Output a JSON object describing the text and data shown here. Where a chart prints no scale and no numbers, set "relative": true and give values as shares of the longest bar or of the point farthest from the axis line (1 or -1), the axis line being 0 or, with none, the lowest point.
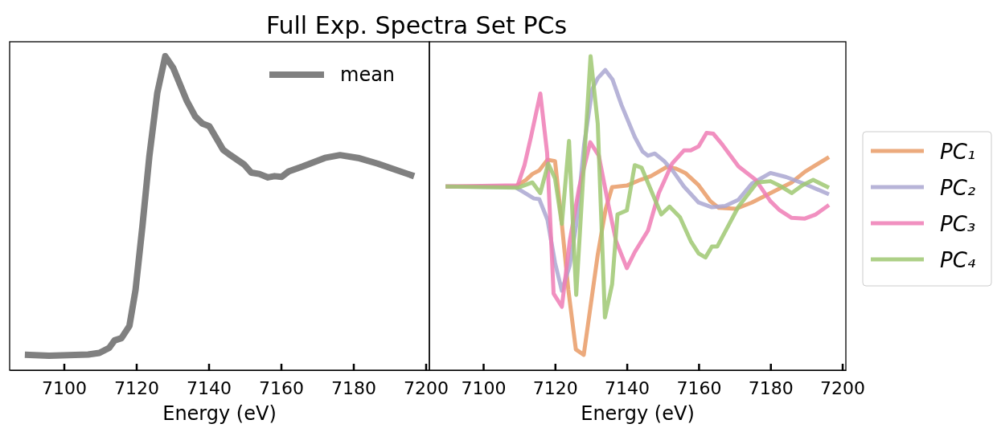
{
  "chart_data": [
    {
      "type": "line",
      "title": "Full Exp. Spectra Set PCs",
      "xlabel": "Energy (eV)",
      "relative": true,
      "tick_labels": "x",
      "legend": "top right",
      "xlim": [
        7085,
        7201
      ],
      "xticks": [
        7100,
        7120,
        7140,
        7160,
        7180,
        7200
      ],
      "series": [
        {
          "name": "mean",
          "color": "#808080",
          "x": [
            7089.2,
            7095.9,
            7106.7,
            7109.8,
            7112.5,
            7114,
            7115.9,
            7118.1,
            7119.8,
            7121.7,
            7123.6,
            7125.8,
            7128,
            7130.2,
            7134,
            7136.3,
            7138.2,
            7140.2,
            7144,
            7146,
            7149.8,
            7151.8,
            7154,
            7156.4,
            7158.2,
            7160.2,
            7162.1,
            7166,
            7172.1,
            7176.3,
            7181.3,
            7186.7,
            7196.8
          ],
          "values": [
            0.049,
            0.046,
            0.05,
            0.055,
            0.071,
            0.095,
            0.102,
            0.141,
            0.256,
            0.459,
            0.68,
            0.883,
            1.0,
            0.963,
            0.857,
            0.808,
            0.786,
            0.777,
            0.702,
            0.685,
            0.655,
            0.629,
            0.625,
            0.614,
            0.618,
            0.616,
            0.633,
            0.649,
            0.676,
            0.685,
            0.676,
            0.658,
            0.618
          ]
        }
      ]
    },
    {
      "type": "line",
      "xlabel": "Energy (eV)",
      "relative": true,
      "tick_labels": "x",
      "legend": "right",
      "xlim": [
        7085,
        7201
      ],
      "xticks": [
        7100,
        7120,
        7140,
        7160,
        7180,
        7200
      ],
      "series": [
        {
          "name": "PC₁",
          "color": "#e99b66",
          "x": [
            7089.5,
            7108.9,
            7111.9,
            7113.7,
            7115.6,
            7117.9,
            7120,
            7121.9,
            7123.7,
            7125.8,
            7128,
            7131.9,
            7134.1,
            7135.9,
            7140,
            7143.7,
            7146.7,
            7151.1,
            7153.7,
            7156.3,
            7160,
            7163.3,
            7165.6,
            7170.4,
            7174.8,
            7180,
            7185.9,
            7189.6,
            7196.3
          ],
          "values": [
            0.585,
            0.585,
            0.606,
            0.625,
            0.636,
            0.67,
            0.666,
            0.466,
            0.257,
            0.066,
            0.049,
            0.368,
            0.513,
            0.583,
            0.588,
            0.606,
            0.618,
            0.647,
            0.642,
            0.628,
            0.589,
            0.538,
            0.517,
            0.514,
            0.534,
            0.564,
            0.598,
            0.632,
            0.679
          ]
        },
        {
          "name": "PC₂",
          "color": "#aaa7d1",
          "x": [
            7089.5,
            7108.9,
            7111.1,
            7114.1,
            7115.6,
            7117.9,
            7120,
            7121.9,
            7124.1,
            7125.9,
            7128.1,
            7130.4,
            7131.9,
            7134,
            7136,
            7138.5,
            7142.2,
            7144.4,
            7145.9,
            7147.8,
            7150.4,
            7153,
            7155.9,
            7160,
            7163.7,
            7167.4,
            7171.1,
            7174.8,
            7180,
            7184.4,
            7190.4,
            7196.3
          ],
          "values": [
            0.585,
            0.583,
            0.568,
            0.547,
            0.545,
            0.479,
            0.342,
            0.253,
            0.334,
            0.462,
            0.717,
            0.896,
            0.93,
            0.956,
            0.926,
            0.845,
            0.743,
            0.696,
            0.683,
            0.69,
            0.666,
            0.632,
            0.585,
            0.534,
            0.519,
            0.523,
            0.543,
            0.594,
            0.628,
            0.615,
            0.589,
            0.56
          ]
        },
        {
          "name": "PC₃",
          "color": "#ef7db5",
          "x": [
            7089.5,
            7109.6,
            7111.5,
            7113.3,
            7115.9,
            7117.8,
            7119.6,
            7121.9,
            7124.1,
            7126.7,
            7129.8,
            7132.2,
            7134.8,
            7137,
            7140,
            7142.2,
            7145.9,
            7148.9,
            7152.6,
            7155.9,
            7157.8,
            7160,
            7162.2,
            7164.1,
            7166.7,
            7171.1,
            7175.9,
            7180,
            7182.6,
            7185.9,
            7189.6,
            7192.6,
            7196.3
          ],
          "values": [
            0.585,
            0.589,
            0.653,
            0.743,
            0.881,
            0.692,
            0.244,
            0.202,
            0.411,
            0.581,
            0.726,
            0.683,
            0.53,
            0.411,
            0.325,
            0.376,
            0.445,
            0.564,
            0.658,
            0.7,
            0.7,
            0.713,
            0.756,
            0.753,
            0.717,
            0.649,
            0.606,
            0.538,
            0.509,
            0.485,
            0.483,
            0.496,
            0.526
          ]
        },
        {
          "name": "PC₄",
          "color": "#9fc872",
          "x": [
            7089.5,
            7109.6,
            7113.7,
            7115.9,
            7118.1,
            7120,
            7121.9,
            7123.9,
            7125.9,
            7128.1,
            7129.9,
            7131.9,
            7133.9,
            7135.9,
            7137.4,
            7140,
            7142.2,
            7144.1,
            7147.4,
            7149.6,
            7151.9,
            7154.8,
            7157.8,
            7160,
            7161.9,
            7163.7,
            7165.2,
            7171.1,
            7176.3,
            7180,
            7183,
            7185.9,
            7188.9,
            7191.9,
            7196.3
          ],
          "values": [
            0.585,
            0.581,
            0.598,
            0.564,
            0.658,
            0.611,
            0.466,
            0.73,
            0.24,
            0.666,
            1.0,
            0.785,
            0.168,
            0.274,
            0.496,
            0.509,
            0.653,
            0.645,
            0.555,
            0.496,
            0.521,
            0.487,
            0.411,
            0.372,
            0.359,
            0.394,
            0.394,
            0.521,
            0.598,
            0.602,
            0.585,
            0.564,
            0.589,
            0.606,
            0.581
          ]
        }
      ]
    }
  ]
}
